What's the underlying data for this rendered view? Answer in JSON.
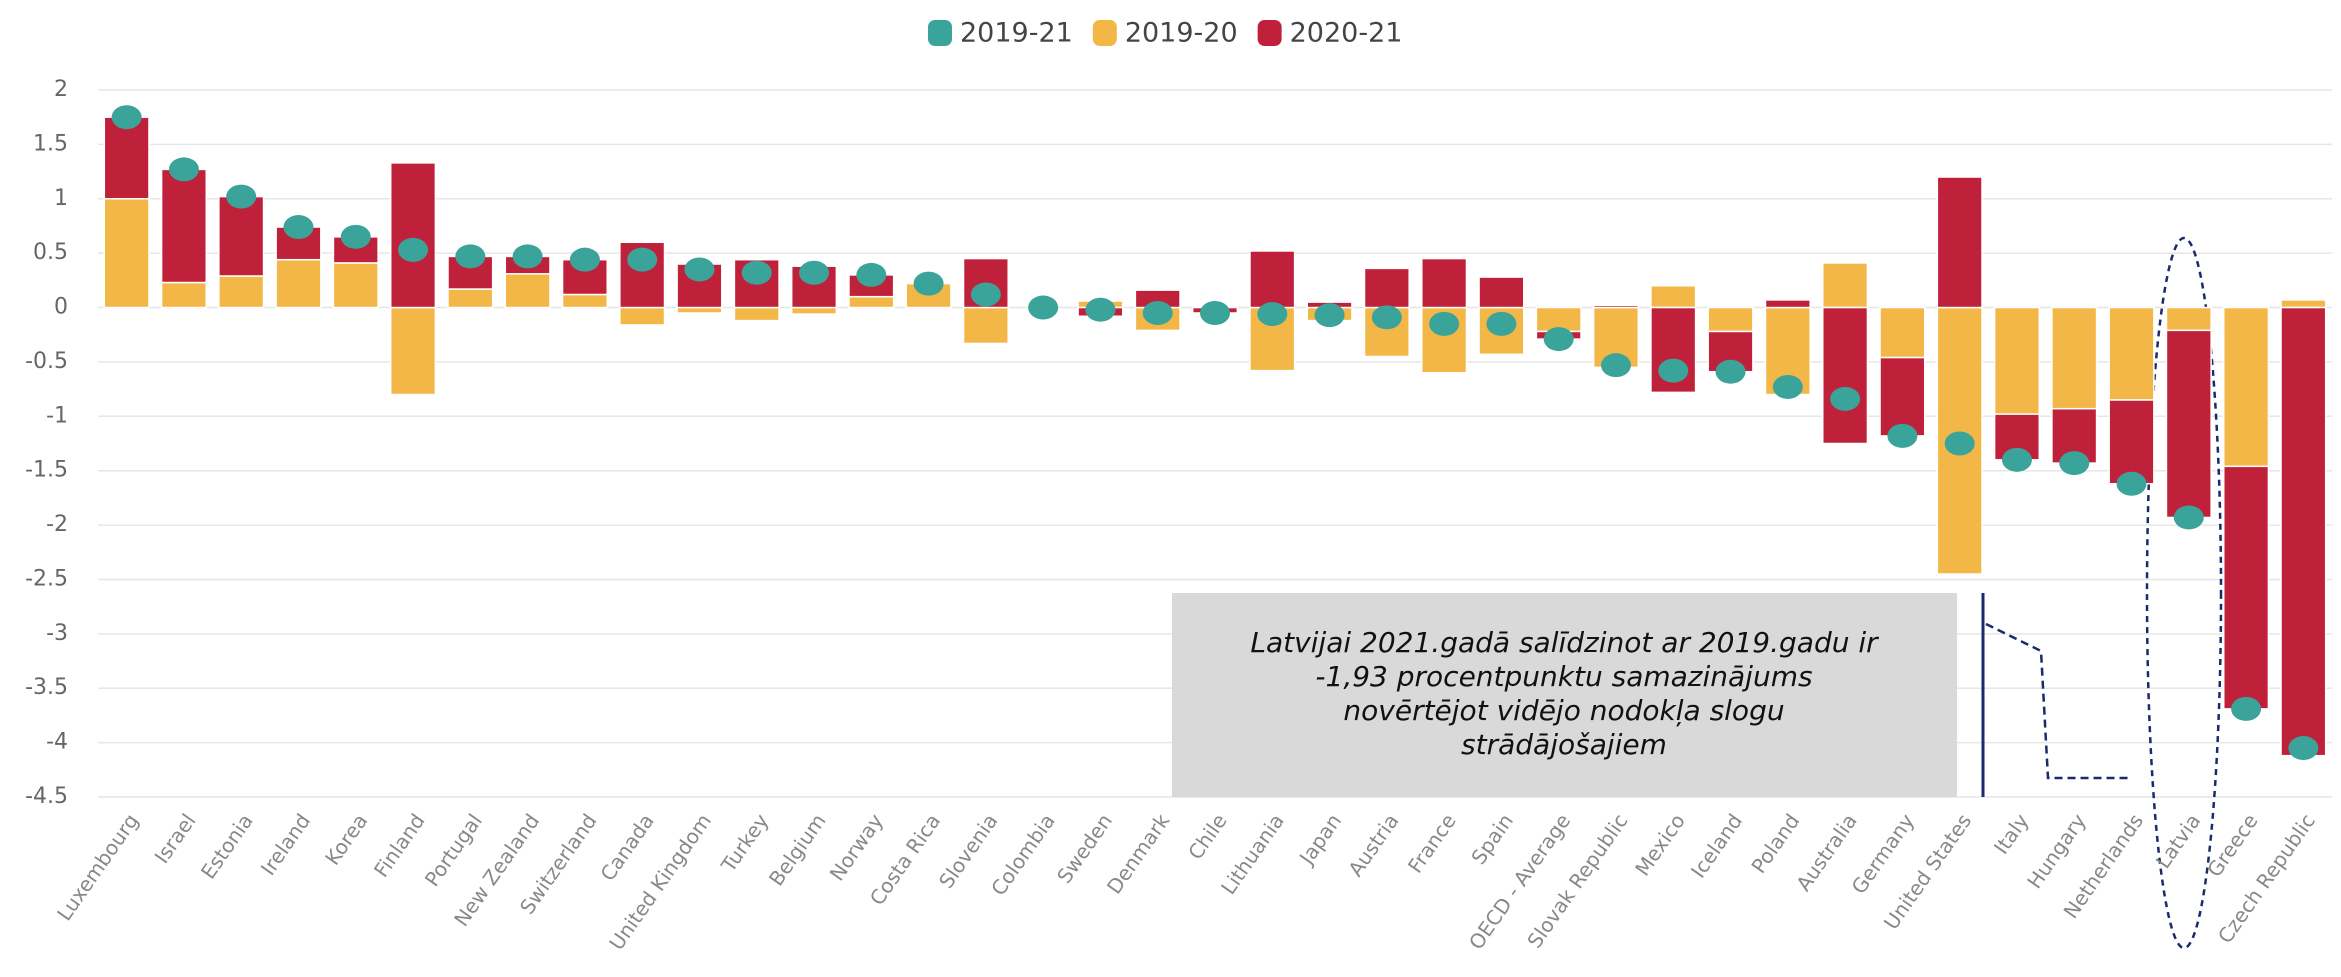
{
  "chart_data": {
    "type": "bar",
    "categories": [
      "Luxembourg",
      "Israel",
      "Estonia",
      "Ireland",
      "Korea",
      "Finland",
      "Portugal",
      "New Zealand",
      "Switzerland",
      "Canada",
      "United Kingdom",
      "Turkey",
      "Belgium",
      "Norway",
      "Costa Rica",
      "Slovenia",
      "Colombia",
      "Sweden",
      "Denmark",
      "Chile",
      "Lithuania",
      "Japan",
      "Austria",
      "France",
      "Spain",
      "OECD - Average",
      "Slovak Republic",
      "Mexico",
      "Iceland",
      "Poland",
      "Australia",
      "Germany",
      "United States",
      "Italy",
      "Hungary",
      "Netherlands",
      "Latvia",
      "Greece",
      "Czech Republic"
    ],
    "series": [
      {
        "name": "2019-21",
        "type": "scatter",
        "color": "#3aa39a",
        "values": [
          1.75,
          1.27,
          1.02,
          0.74,
          0.65,
          0.53,
          0.47,
          0.47,
          0.44,
          0.44,
          0.35,
          0.32,
          0.32,
          0.3,
          0.22,
          0.12,
          0.0,
          -0.02,
          -0.05,
          -0.05,
          -0.06,
          -0.07,
          -0.09,
          -0.15,
          -0.15,
          -0.29,
          -0.53,
          -0.58,
          -0.59,
          -0.73,
          -0.84,
          -1.18,
          -1.25,
          -1.4,
          -1.43,
          -1.62,
          -1.93,
          -3.69,
          -4.05
        ]
      },
      {
        "name": "2019-20",
        "color": "#f2b746",
        "values": [
          1.0,
          0.23,
          0.29,
          0.44,
          0.41,
          -0.8,
          0.17,
          0.31,
          0.12,
          -0.16,
          -0.05,
          -0.12,
          -0.06,
          0.1,
          0.22,
          -0.33,
          0.0,
          0.06,
          -0.21,
          0.0,
          -0.58,
          -0.12,
          -0.45,
          -0.6,
          -0.43,
          -0.22,
          -0.55,
          0.2,
          -0.22,
          -0.8,
          0.41,
          -0.46,
          -2.45,
          -0.98,
          -0.93,
          -0.85,
          -0.21,
          -1.46,
          0.07
        ]
      },
      {
        "name": "2020-21",
        "color": "#c0213a",
        "values": [
          0.75,
          1.04,
          0.73,
          0.3,
          0.24,
          1.33,
          0.3,
          0.16,
          0.32,
          0.6,
          0.4,
          0.44,
          0.38,
          0.2,
          0.0,
          0.45,
          0.0,
          -0.08,
          0.16,
          -0.05,
          0.52,
          0.05,
          0.36,
          0.45,
          0.28,
          -0.07,
          0.02,
          -0.78,
          -0.37,
          0.07,
          -1.25,
          -0.72,
          1.2,
          -0.42,
          -0.5,
          -0.77,
          -1.72,
          -2.23,
          -4.12
        ]
      }
    ],
    "ylim": [
      -4.5,
      2
    ],
    "yticks": [
      -4.5,
      -4,
      -3.5,
      -3,
      -2.5,
      -2,
      -1.5,
      -1,
      -0.5,
      0,
      0.5,
      1,
      1.5,
      2
    ],
    "grid": true,
    "legend": "top",
    "annotation": [
      "Latvijai 2021.gadā salīdzinot ar 2019.gadu ir",
      "-1,93 procentpunktu samazinājums",
      "novērtējot vidējo nodokļa slogu",
      "strādājošajiem"
    ]
  }
}
